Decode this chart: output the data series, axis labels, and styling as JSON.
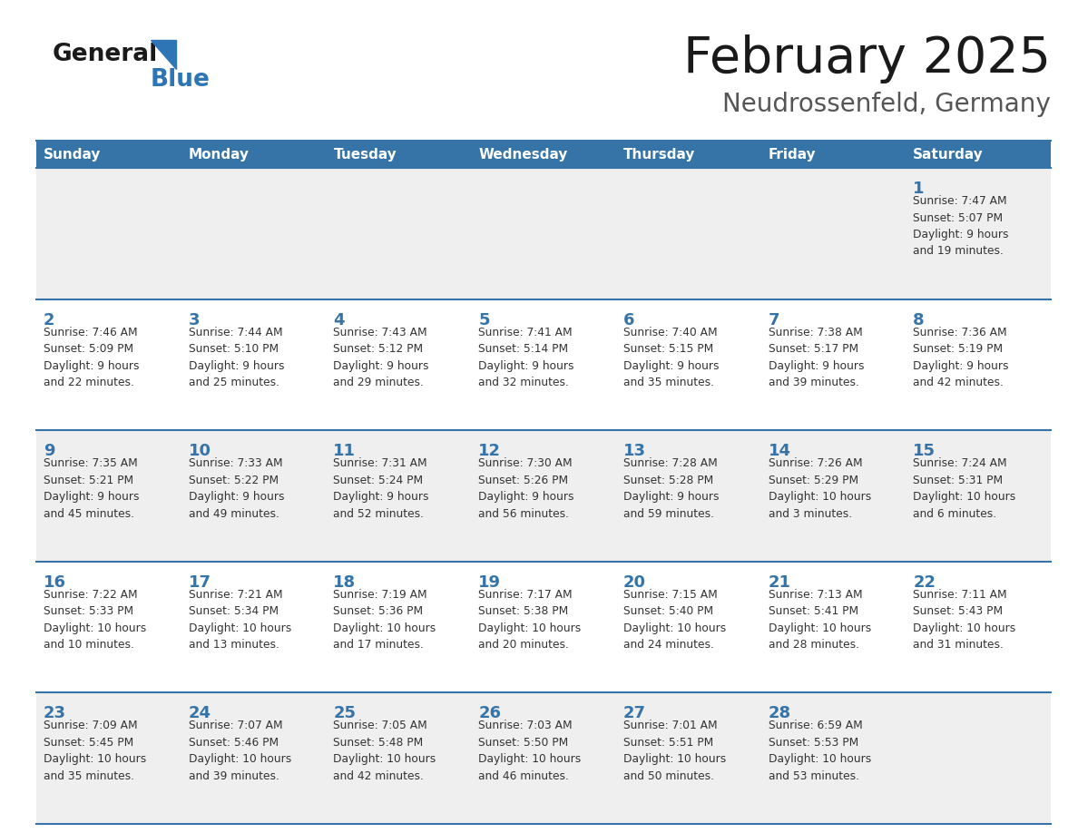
{
  "title": "February 2025",
  "subtitle": "Neudrossenfeld, Germany",
  "header_color": "#3674a8",
  "header_text_color": "#FFFFFF",
  "day_number_color": "#3674a8",
  "text_color": "#333333",
  "line_color": "#3674a8",
  "cell_bg_odd": "#EFEFEF",
  "cell_bg_even": "#FFFFFF",
  "logo_text_color": "#1a1a1a",
  "logo_blue_color": "#2E75B6",
  "days_of_week": [
    "Sunday",
    "Monday",
    "Tuesday",
    "Wednesday",
    "Thursday",
    "Friday",
    "Saturday"
  ],
  "weeks": [
    [
      {
        "day": null,
        "info": null
      },
      {
        "day": null,
        "info": null
      },
      {
        "day": null,
        "info": null
      },
      {
        "day": null,
        "info": null
      },
      {
        "day": null,
        "info": null
      },
      {
        "day": null,
        "info": null
      },
      {
        "day": "1",
        "info": "Sunrise: 7:47 AM\nSunset: 5:07 PM\nDaylight: 9 hours\nand 19 minutes."
      }
    ],
    [
      {
        "day": "2",
        "info": "Sunrise: 7:46 AM\nSunset: 5:09 PM\nDaylight: 9 hours\nand 22 minutes."
      },
      {
        "day": "3",
        "info": "Sunrise: 7:44 AM\nSunset: 5:10 PM\nDaylight: 9 hours\nand 25 minutes."
      },
      {
        "day": "4",
        "info": "Sunrise: 7:43 AM\nSunset: 5:12 PM\nDaylight: 9 hours\nand 29 minutes."
      },
      {
        "day": "5",
        "info": "Sunrise: 7:41 AM\nSunset: 5:14 PM\nDaylight: 9 hours\nand 32 minutes."
      },
      {
        "day": "6",
        "info": "Sunrise: 7:40 AM\nSunset: 5:15 PM\nDaylight: 9 hours\nand 35 minutes."
      },
      {
        "day": "7",
        "info": "Sunrise: 7:38 AM\nSunset: 5:17 PM\nDaylight: 9 hours\nand 39 minutes."
      },
      {
        "day": "8",
        "info": "Sunrise: 7:36 AM\nSunset: 5:19 PM\nDaylight: 9 hours\nand 42 minutes."
      }
    ],
    [
      {
        "day": "9",
        "info": "Sunrise: 7:35 AM\nSunset: 5:21 PM\nDaylight: 9 hours\nand 45 minutes."
      },
      {
        "day": "10",
        "info": "Sunrise: 7:33 AM\nSunset: 5:22 PM\nDaylight: 9 hours\nand 49 minutes."
      },
      {
        "day": "11",
        "info": "Sunrise: 7:31 AM\nSunset: 5:24 PM\nDaylight: 9 hours\nand 52 minutes."
      },
      {
        "day": "12",
        "info": "Sunrise: 7:30 AM\nSunset: 5:26 PM\nDaylight: 9 hours\nand 56 minutes."
      },
      {
        "day": "13",
        "info": "Sunrise: 7:28 AM\nSunset: 5:28 PM\nDaylight: 9 hours\nand 59 minutes."
      },
      {
        "day": "14",
        "info": "Sunrise: 7:26 AM\nSunset: 5:29 PM\nDaylight: 10 hours\nand 3 minutes."
      },
      {
        "day": "15",
        "info": "Sunrise: 7:24 AM\nSunset: 5:31 PM\nDaylight: 10 hours\nand 6 minutes."
      }
    ],
    [
      {
        "day": "16",
        "info": "Sunrise: 7:22 AM\nSunset: 5:33 PM\nDaylight: 10 hours\nand 10 minutes."
      },
      {
        "day": "17",
        "info": "Sunrise: 7:21 AM\nSunset: 5:34 PM\nDaylight: 10 hours\nand 13 minutes."
      },
      {
        "day": "18",
        "info": "Sunrise: 7:19 AM\nSunset: 5:36 PM\nDaylight: 10 hours\nand 17 minutes."
      },
      {
        "day": "19",
        "info": "Sunrise: 7:17 AM\nSunset: 5:38 PM\nDaylight: 10 hours\nand 20 minutes."
      },
      {
        "day": "20",
        "info": "Sunrise: 7:15 AM\nSunset: 5:40 PM\nDaylight: 10 hours\nand 24 minutes."
      },
      {
        "day": "21",
        "info": "Sunrise: 7:13 AM\nSunset: 5:41 PM\nDaylight: 10 hours\nand 28 minutes."
      },
      {
        "day": "22",
        "info": "Sunrise: 7:11 AM\nSunset: 5:43 PM\nDaylight: 10 hours\nand 31 minutes."
      }
    ],
    [
      {
        "day": "23",
        "info": "Sunrise: 7:09 AM\nSunset: 5:45 PM\nDaylight: 10 hours\nand 35 minutes."
      },
      {
        "day": "24",
        "info": "Sunrise: 7:07 AM\nSunset: 5:46 PM\nDaylight: 10 hours\nand 39 minutes."
      },
      {
        "day": "25",
        "info": "Sunrise: 7:05 AM\nSunset: 5:48 PM\nDaylight: 10 hours\nand 42 minutes."
      },
      {
        "day": "26",
        "info": "Sunrise: 7:03 AM\nSunset: 5:50 PM\nDaylight: 10 hours\nand 46 minutes."
      },
      {
        "day": "27",
        "info": "Sunrise: 7:01 AM\nSunset: 5:51 PM\nDaylight: 10 hours\nand 50 minutes."
      },
      {
        "day": "28",
        "info": "Sunrise: 6:59 AM\nSunset: 5:53 PM\nDaylight: 10 hours\nand 53 minutes."
      },
      {
        "day": null,
        "info": null
      }
    ]
  ]
}
